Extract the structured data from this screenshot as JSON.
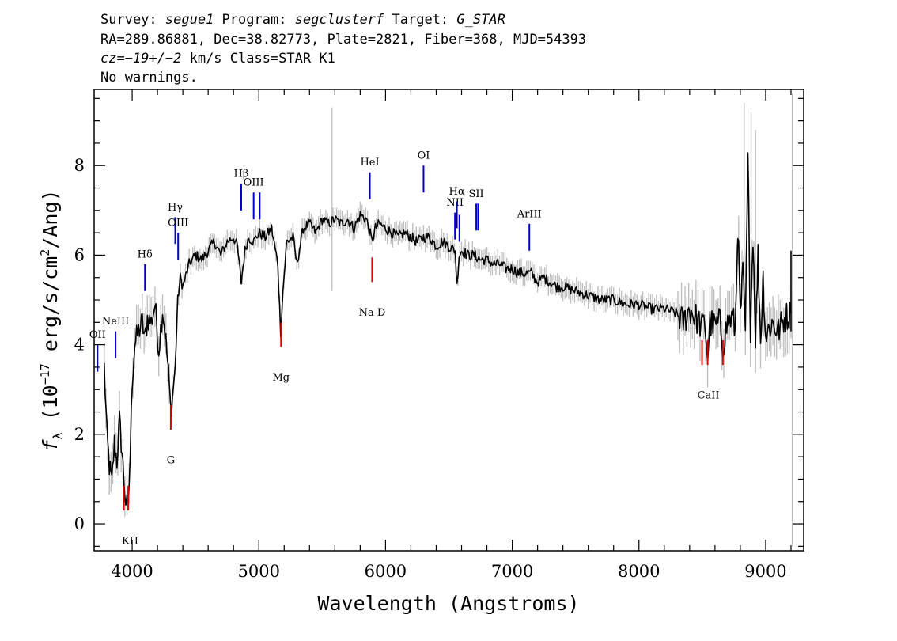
{
  "header": {
    "survey_label": "Survey: ",
    "survey_value": "segue1",
    "program_label": " Program: ",
    "program_value": "segclusterf",
    "target_label": " Target: ",
    "target_value": "G_STAR",
    "line2": "RA=289.86881, Dec=38.82773, Plate=2821, Fiber=368, MJD=54393",
    "cz_value": "cz=−19+/−2",
    "cz_rest": " km/s Class=STAR K1",
    "line4": "No warnings."
  },
  "chart_data": {
    "type": "line",
    "xlabel": "Wavelength (Angstroms)",
    "ylabel": "f_λ (10^-17 erg/s/cm^2/Ang)",
    "xlim": [
      3700,
      9300
    ],
    "ylim": [
      -0.6,
      9.7
    ],
    "x_ticks": [
      4000,
      5000,
      6000,
      7000,
      8000,
      9000
    ],
    "y_ticks": [
      0,
      2,
      4,
      6,
      8
    ],
    "grid": false,
    "colors": {
      "flux": "#000000",
      "error_band": "#c0c0c0",
      "emission": "#0000cc",
      "absorption": "#dd0000"
    },
    "series": [
      {
        "x": [
          3780,
          3800,
          3820,
          3840,
          3860,
          3880,
          3900,
          3920,
          3935,
          3950,
          3968,
          3985,
          4000,
          4020,
          4050,
          4080,
          4101,
          4120,
          4150,
          4180,
          4210,
          4240,
          4260,
          4280,
          4300,
          4310,
          4320,
          4340,
          4360,
          4380,
          4400,
          4450,
          4500,
          4550,
          4600,
          4650,
          4700,
          4750,
          4800,
          4830,
          4861,
          4890,
          4920,
          4960,
          5000,
          5050,
          5100,
          5150,
          5172,
          5190,
          5220,
          5270,
          5300,
          5350,
          5400,
          5450,
          5500,
          5550,
          5600,
          5650,
          5700,
          5750,
          5800,
          5850,
          5893,
          5920,
          5950,
          6000,
          6050,
          6100,
          6150,
          6200,
          6250,
          6300,
          6350,
          6400,
          6450,
          6500,
          6550,
          6563,
          6580,
          6600,
          6650,
          6700,
          6750,
          6800,
          6850,
          6900,
          6950,
          7000,
          7050,
          7100,
          7150,
          7200,
          7250,
          7300,
          7350,
          7400,
          7500,
          7600,
          7700,
          7800,
          7900,
          8000,
          8100,
          8200,
          8300,
          8350,
          8400,
          8450,
          8498,
          8520,
          8542,
          8560,
          8600,
          8640,
          8662,
          8700,
          8740,
          8760,
          8780,
          8800,
          8820,
          8840,
          8860,
          8880,
          8900,
          8920,
          8940,
          8960,
          8980,
          9000,
          9050,
          9100,
          9150,
          9200
        ],
        "y": [
          3.5,
          2.0,
          1.3,
          0.9,
          1.8,
          1.4,
          2.3,
          1.6,
          1.0,
          0.5,
          0.3,
          1.6,
          3.2,
          4.0,
          4.3,
          4.5,
          4.1,
          4.6,
          4.5,
          4.9,
          3.9,
          4.8,
          4.3,
          3.6,
          2.8,
          2.5,
          2.9,
          3.5,
          5.0,
          5.5,
          5.3,
          5.8,
          6.0,
          5.9,
          6.1,
          6.3,
          6.0,
          6.3,
          6.4,
          6.2,
          5.4,
          6.1,
          6.4,
          6.3,
          6.5,
          6.4,
          6.6,
          5.8,
          4.3,
          5.2,
          6.3,
          6.4,
          5.8,
          6.6,
          6.7,
          6.5,
          6.8,
          6.7,
          6.8,
          6.7,
          6.8,
          6.6,
          6.9,
          6.8,
          6.3,
          6.6,
          6.7,
          6.6,
          6.5,
          6.4,
          6.5,
          6.4,
          6.3,
          6.4,
          6.4,
          6.2,
          6.3,
          6.2,
          6.1,
          5.3,
          6.0,
          6.1,
          6.0,
          6.0,
          5.9,
          5.9,
          5.8,
          5.8,
          5.7,
          5.7,
          5.6,
          5.6,
          5.6,
          5.4,
          5.5,
          5.4,
          5.3,
          5.3,
          5.2,
          5.1,
          5.0,
          5.0,
          4.9,
          4.9,
          4.8,
          4.8,
          4.7,
          4.5,
          4.8,
          4.6,
          4.4,
          4.5,
          3.7,
          4.5,
          4.4,
          4.5,
          4.0,
          4.5,
          4.6,
          4.3,
          6.7,
          4.6,
          5.6,
          4.3,
          8.1,
          4.4,
          6.5,
          4.2,
          6.0,
          4.1,
          5.5,
          4.2,
          4.5,
          4.3,
          4.6,
          4.7
        ]
      }
    ],
    "annotations": {
      "emission": [
        {
          "label": "OII",
          "wavelength": 3727,
          "text_y": 4.15
        },
        {
          "label": "NeIII",
          "wavelength": 3869,
          "text_y": 4.45
        },
        {
          "label": "Hδ",
          "wavelength": 4101,
          "text_y": 5.95
        },
        {
          "label": "Hγ",
          "wavelength": 4340,
          "text_y": 7.0
        },
        {
          "label": "OIII",
          "wavelength": 4363,
          "text_y": 6.65
        },
        {
          "label": "Hβ",
          "wavelength": 4861,
          "text_y": 7.75
        },
        {
          "label": "OIII",
          "wavelength": 4959,
          "text_y": 7.55
        },
        {
          "label": "OIII",
          "wavelength": 5007,
          "text_y": 7.55
        },
        {
          "label": "HeI",
          "wavelength": 5876,
          "text_y": 8.0
        },
        {
          "label": "OI",
          "wavelength": 6300,
          "text_y": 8.15
        },
        {
          "label": "NII",
          "wavelength": 6548,
          "text_y": 7.1
        },
        {
          "label": "Hα",
          "wavelength": 6563,
          "text_y": 7.35
        },
        {
          "label": "NII",
          "wavelength": 6583,
          "text_y": 7.05
        },
        {
          "label": "SII",
          "wavelength": 6716,
          "text_y": 7.3
        },
        {
          "label": "SII",
          "wavelength": 6731,
          "text_y": 7.3
        },
        {
          "label": "ArIII",
          "wavelength": 7135,
          "text_y": 6.85
        }
      ],
      "absorption": [
        {
          "label": "KH",
          "wavelength": 3934,
          "text_y": -0.45
        },
        {
          "label": "KH",
          "wavelength": 3969,
          "text_y": -0.45
        },
        {
          "label": "G",
          "wavelength": 4305,
          "text_y": 1.35
        },
        {
          "label": "Mg",
          "wavelength": 5175,
          "text_y": 3.2
        },
        {
          "label": "Na D",
          "wavelength": 5894,
          "text_y": 4.65
        },
        {
          "label": "CaII",
          "wavelength": 8498,
          "text_y": 2.8
        },
        {
          "label": "CaII",
          "wavelength": 8542,
          "text_y": 2.8
        },
        {
          "label": "CaII",
          "wavelength": 8662,
          "text_y": 2.8
        }
      ]
    }
  }
}
